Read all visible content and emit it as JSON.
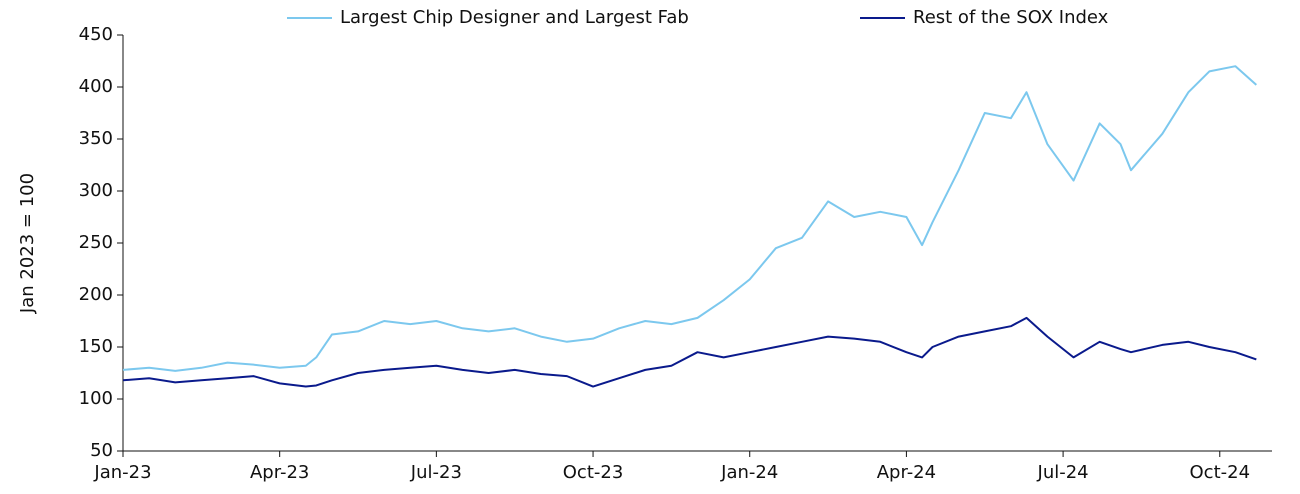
{
  "chart_data": {
    "type": "line",
    "y_label": "Jan 2023 = 100",
    "x": [
      0,
      0.5,
      1,
      1.5,
      2,
      2.5,
      3,
      3.5,
      3.7,
      4,
      4.5,
      5,
      5.5,
      6,
      6.5,
      7,
      7.5,
      8,
      8.5,
      9,
      9.5,
      10,
      10.5,
      11,
      11.5,
      12,
      12.5,
      13,
      13.5,
      14,
      14.5,
      15,
      15.3,
      15.5,
      16,
      16.5,
      17,
      17.3,
      17.7,
      18.2,
      18.7,
      19.1,
      19.3,
      19.9,
      20.4,
      20.8,
      21.3,
      21.7
    ],
    "series": [
      {
        "name": "Largest Chip Designer and Largest Fab",
        "color": "#7cc8ee",
        "values": [
          128,
          130,
          127,
          130,
          135,
          133,
          130,
          132,
          140,
          162,
          165,
          175,
          172,
          175,
          168,
          165,
          168,
          160,
          155,
          158,
          168,
          175,
          172,
          178,
          195,
          215,
          245,
          255,
          290,
          275,
          280,
          275,
          248,
          270,
          320,
          375,
          370,
          395,
          345,
          310,
          365,
          345,
          320,
          355,
          395,
          415,
          420,
          402
        ]
      },
      {
        "name": "Rest of the SOX Index",
        "color": "#0a1a8c",
        "values": [
          118,
          120,
          116,
          118,
          120,
          122,
          115,
          112,
          113,
          118,
          125,
          128,
          130,
          132,
          128,
          125,
          128,
          124,
          122,
          112,
          120,
          128,
          132,
          145,
          140,
          145,
          150,
          155,
          160,
          158,
          155,
          145,
          140,
          150,
          160,
          165,
          170,
          178,
          160,
          140,
          155,
          148,
          145,
          152,
          155,
          150,
          145,
          138
        ]
      }
    ],
    "xlim": [
      0,
      22
    ],
    "xticks": [
      {
        "value": 0,
        "label": "Jan-23"
      },
      {
        "value": 3,
        "label": "Apr-23"
      },
      {
        "value": 6,
        "label": "Jul-23"
      },
      {
        "value": 9,
        "label": "Oct-23"
      },
      {
        "value": 12,
        "label": "Jan-24"
      },
      {
        "value": 15,
        "label": "Apr-24"
      },
      {
        "value": 18,
        "label": "Jul-24"
      },
      {
        "value": 21,
        "label": "Oct-24"
      }
    ],
    "ylim": [
      50,
      450
    ],
    "yticks": [
      50,
      100,
      150,
      200,
      250,
      300,
      350,
      400,
      450
    ],
    "grid": false,
    "legend": "top"
  }
}
